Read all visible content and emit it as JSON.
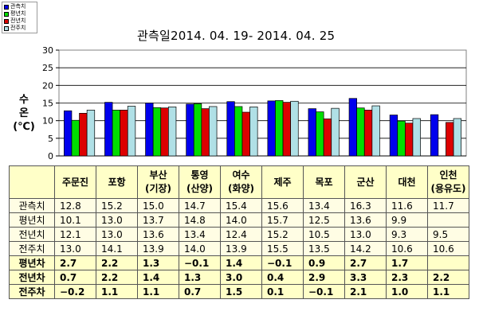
{
  "legend": [
    {
      "label": "관측치",
      "color": "#0000ee"
    },
    {
      "label": "평년치",
      "color": "#00dd00"
    },
    {
      "label": "전년치",
      "color": "#dd0000"
    },
    {
      "label": "전주치",
      "color": "#b0e0e6"
    }
  ],
  "chart_data": {
    "type": "bar",
    "title": "관측일2014. 04. 19-  2014. 04. 25",
    "ylabel": "수\n온\n(℃)",
    "ylim": [
      0,
      30
    ],
    "yticks": [
      "0",
      "5",
      "10",
      "15",
      "20",
      "25",
      "30"
    ],
    "grid": true,
    "legend_position": "top-left",
    "categories": [
      "주문진",
      "포항",
      "부산 (기장)",
      "통영 (산양)",
      "여수 (화양)",
      "제주",
      "목포",
      "군산",
      "대천",
      "인천 (용유도)"
    ],
    "series": [
      {
        "name": "관측치",
        "color": "#0000ee",
        "values": [
          12.8,
          15.2,
          15.0,
          14.7,
          15.4,
          15.6,
          13.4,
          16.3,
          11.6,
          11.7
        ]
      },
      {
        "name": "평년치",
        "color": "#00dd00",
        "values": [
          10.1,
          13.0,
          13.7,
          14.8,
          14.0,
          15.7,
          12.5,
          13.6,
          9.9,
          null
        ]
      },
      {
        "name": "전년치",
        "color": "#dd0000",
        "values": [
          12.1,
          13.0,
          13.6,
          13.4,
          12.4,
          15.2,
          10.5,
          13.0,
          9.3,
          9.5
        ]
      },
      {
        "name": "전주치",
        "color": "#b0e0e6",
        "values": [
          13.0,
          14.1,
          13.9,
          14.0,
          13.9,
          15.5,
          13.5,
          14.2,
          10.6,
          10.6
        ]
      }
    ]
  },
  "table": {
    "stations": [
      [
        "주문진"
      ],
      [
        "포항"
      ],
      [
        "부산",
        "(기장)"
      ],
      [
        "통영",
        "(산양)"
      ],
      [
        "여수",
        "(화양)"
      ],
      [
        "제주"
      ],
      [
        "목포"
      ],
      [
        "군산"
      ],
      [
        "대천"
      ],
      [
        "인천",
        "(용유도)"
      ]
    ],
    "rows": [
      {
        "label": "관측치",
        "kind": "obs",
        "values": [
          "12.8",
          "15.2",
          "15.0",
          "14.7",
          "15.4",
          "15.6",
          "13.4",
          "16.3",
          "11.6",
          "11.7"
        ]
      },
      {
        "label": "평년치",
        "kind": "obs",
        "values": [
          "10.1",
          "13.0",
          "13.7",
          "14.8",
          "14.0",
          "15.7",
          "12.5",
          "13.6",
          "9.9",
          ""
        ]
      },
      {
        "label": "전년치",
        "kind": "obs",
        "values": [
          "12.1",
          "13.0",
          "13.6",
          "13.4",
          "12.4",
          "15.2",
          "10.5",
          "13.0",
          "9.3",
          "9.5"
        ]
      },
      {
        "label": "전주치",
        "kind": "obs",
        "values": [
          "13.0",
          "14.1",
          "13.9",
          "14.0",
          "13.9",
          "15.5",
          "13.5",
          "14.2",
          "10.6",
          "10.6"
        ]
      },
      {
        "label": "평년차",
        "kind": "diff",
        "values": [
          "2.7",
          "2.2",
          "1.3",
          "-0.1",
          "1.4",
          "-0.1",
          "0.9",
          "2.7",
          "1.7",
          ""
        ]
      },
      {
        "label": "전년차",
        "kind": "diff",
        "values": [
          "0.7",
          "2.2",
          "1.4",
          "1.3",
          "3.0",
          "0.4",
          "2.9",
          "3.3",
          "2.3",
          "2.2"
        ]
      },
      {
        "label": "전주차",
        "kind": "diff",
        "values": [
          "-0.2",
          "1.1",
          "1.1",
          "0.7",
          "1.5",
          "0.1",
          "-0.1",
          "2.1",
          "1.0",
          "1.1"
        ]
      }
    ]
  }
}
